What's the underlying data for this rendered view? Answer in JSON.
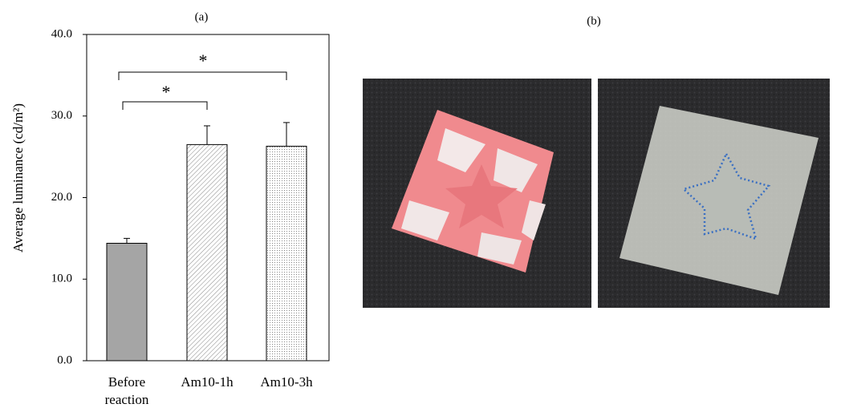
{
  "chart_data": {
    "type": "bar",
    "panel_label": "(a)",
    "ylabel": "Average luminance (cd/m²)",
    "categories": [
      "Before reaction",
      "Am10-1h",
      "Am10-3h"
    ],
    "values": [
      14.4,
      26.5,
      26.3
    ],
    "errors": [
      0.6,
      2.3,
      2.9
    ],
    "ylim": [
      0,
      40
    ],
    "yticks": [
      {
        "value": 0,
        "label": "0.0"
      },
      {
        "value": 10,
        "label": "10.0"
      },
      {
        "value": 20,
        "label": "20.0"
      },
      {
        "value": 30,
        "label": "30.0"
      },
      {
        "value": 40,
        "label": "40.0"
      }
    ],
    "annotations": [
      "*",
      "*"
    ]
  },
  "photo_panel": {
    "label": "(b)"
  }
}
